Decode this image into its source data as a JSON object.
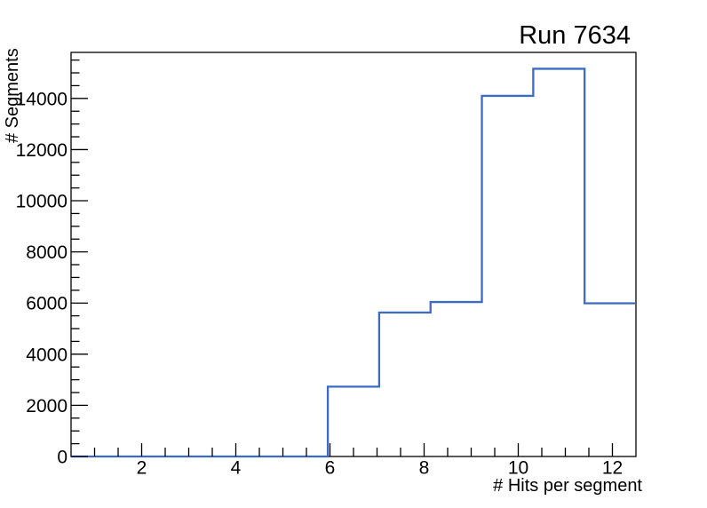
{
  "chart_data": {
    "type": "histogram-step",
    "title": "Run 7634",
    "xlabel": "# Hits per segment",
    "ylabel": "# Segments",
    "xlim": [
      0.5,
      12.5
    ],
    "ylim": [
      0,
      15800
    ],
    "bin_edges": [
      0.5,
      1.5909,
      2.6818,
      3.7727,
      4.8636,
      5.9545,
      7.0455,
      8.1364,
      9.2273,
      10.3182,
      11.4091,
      12.5
    ],
    "counts": [
      0,
      0,
      0,
      0,
      0,
      2730,
      5630,
      6040,
      14100,
      15160,
      5990
    ],
    "x_major_ticks": [
      2,
      4,
      6,
      8,
      10,
      12
    ],
    "x_tick_labels": [
      "2",
      "4",
      "6",
      "8",
      "10",
      "12"
    ],
    "x_minor_step": 0.5,
    "y_major_ticks": [
      0,
      2000,
      4000,
      6000,
      8000,
      10000,
      12000,
      14000
    ],
    "y_tick_labels": [
      "0",
      "2000",
      "4000",
      "6000",
      "8000",
      "10000",
      "12000",
      "14000"
    ],
    "y_minor_step": 500,
    "grid": false,
    "legend": null,
    "line_color": "#3c6bc5",
    "frame_color": "#000000",
    "background_color": "#ffffff"
  }
}
